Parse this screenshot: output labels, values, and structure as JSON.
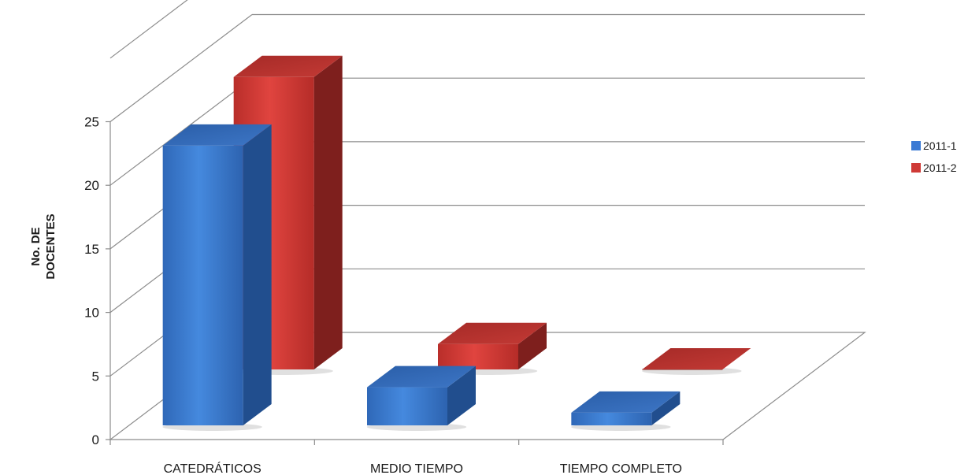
{
  "chart_data": {
    "type": "bar",
    "title": "",
    "ylabel_lines": [
      "No. DE",
      "DOCENTES"
    ],
    "xlabel": "",
    "categories": [
      "CATEDRÁTICOS",
      "MEDIO TIEMPO",
      "TIEMPO COMPLETO"
    ],
    "series": [
      {
        "name": "2011-1",
        "values": [
          22,
          3,
          1
        ],
        "color": "#3b7ad4"
      },
      {
        "name": "2011-2",
        "values": [
          23,
          2,
          0
        ],
        "color": "#cf3a36"
      }
    ],
    "ylim": [
      0,
      25
    ],
    "y_ticks": [
      "0",
      "5",
      "10",
      "15",
      "20",
      "25"
    ],
    "grid": true,
    "legend_position": "right",
    "style": "3d-clustered-column"
  }
}
